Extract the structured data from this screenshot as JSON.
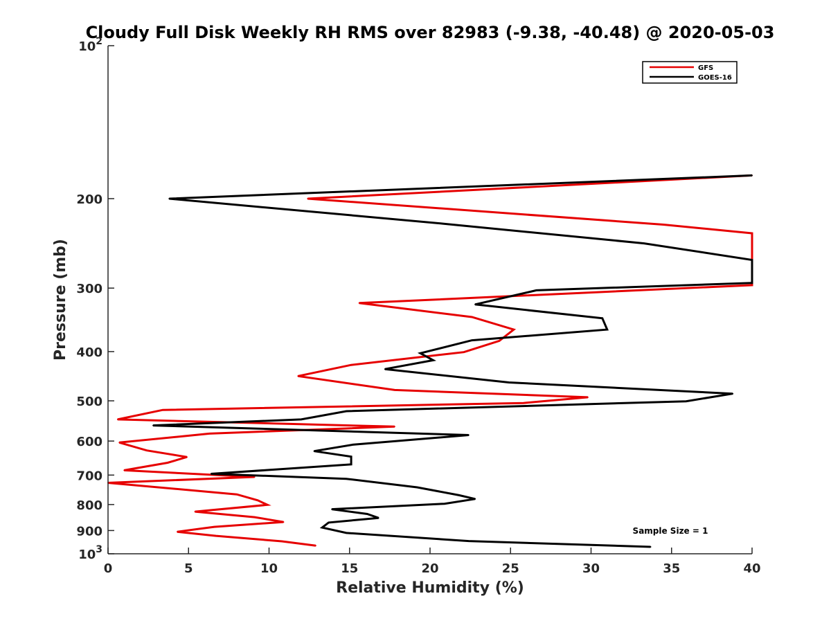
{
  "chart_data": {
    "type": "line",
    "title": "Cloudy Full Disk Weekly RH RMS over 82983 (-9.38, -40.48) @ 2020-05-03",
    "xlabel": "Relative Humidity (%)",
    "ylabel": "Pressure (mb)",
    "xlim": [
      0,
      40
    ],
    "ylim": [
      100,
      1000
    ],
    "y_scale": "log",
    "y_reversed": true,
    "grid": false,
    "legend_position": "top-right",
    "x_ticks": [
      {
        "value": 0,
        "label": "0"
      },
      {
        "value": 5,
        "label": "5"
      },
      {
        "value": 10,
        "label": "10"
      },
      {
        "value": 15,
        "label": "15"
      },
      {
        "value": 20,
        "label": "20"
      },
      {
        "value": 25,
        "label": "25"
      },
      {
        "value": 30,
        "label": "30"
      },
      {
        "value": 35,
        "label": "35"
      },
      {
        "value": 40,
        "label": "40"
      }
    ],
    "y_ticks": [
      {
        "value": 100,
        "base": "10",
        "exp": "2"
      },
      {
        "value": 200,
        "label": "200"
      },
      {
        "value": 300,
        "label": "300"
      },
      {
        "value": 400,
        "label": "400"
      },
      {
        "value": 500,
        "label": "500"
      },
      {
        "value": 600,
        "label": "600"
      },
      {
        "value": 700,
        "label": "700"
      },
      {
        "value": 800,
        "label": "800"
      },
      {
        "value": 900,
        "label": "900"
      },
      {
        "value": 1000,
        "base": "10",
        "exp": "3"
      }
    ],
    "series": [
      {
        "name": "GFS",
        "color": "#e60000",
        "points": [
          [
            40,
            180
          ],
          [
            12.4,
            200
          ],
          [
            34.5,
            225
          ],
          [
            40,
            234
          ],
          [
            40,
            296
          ],
          [
            15.6,
            321
          ],
          [
            22.6,
            342
          ],
          [
            25.2,
            362
          ],
          [
            24.3,
            381
          ],
          [
            22.1,
            401
          ],
          [
            15.1,
            425
          ],
          [
            11.8,
            447
          ],
          [
            17.8,
            476
          ],
          [
            29.8,
            492
          ],
          [
            25.8,
            505
          ],
          [
            3.4,
            521
          ],
          [
            0.6,
            544
          ],
          [
            17.8,
            562
          ],
          [
            6.3,
            580
          ],
          [
            0.7,
            604
          ],
          [
            2.4,
            626
          ],
          [
            4.9,
            645
          ],
          [
            3.7,
            662
          ],
          [
            1.0,
            685
          ],
          [
            9.1,
            706
          ],
          [
            0,
            725
          ],
          [
            8.0,
            764
          ],
          [
            9.3,
            785
          ],
          [
            9.9,
            801
          ],
          [
            5.4,
            826
          ],
          [
            9.1,
            847
          ],
          [
            10.9,
            866
          ],
          [
            6.6,
            885
          ],
          [
            4.3,
            905
          ],
          [
            6.7,
            922
          ],
          [
            10.8,
            945
          ],
          [
            12.9,
            964
          ]
        ]
      },
      {
        "name": "GOES-16",
        "color": "#000000",
        "points": [
          [
            40,
            180
          ],
          [
            3.8,
            200
          ],
          [
            20.8,
            224
          ],
          [
            33.3,
            245
          ],
          [
            40,
            264
          ],
          [
            40,
            293
          ],
          [
            26.6,
            303
          ],
          [
            22.8,
            323
          ],
          [
            30.7,
            344
          ],
          [
            31.0,
            362
          ],
          [
            22.6,
            380
          ],
          [
            19.4,
            403
          ],
          [
            20.2,
            416
          ],
          [
            17.2,
            433
          ],
          [
            24.9,
            460
          ],
          [
            38.8,
            484
          ],
          [
            35.9,
            501
          ],
          [
            14.8,
            524
          ],
          [
            12.0,
            544
          ],
          [
            2.8,
            559
          ],
          [
            22.4,
            584
          ],
          [
            15.2,
            610
          ],
          [
            12.8,
            628
          ],
          [
            15.1,
            644
          ],
          [
            15.1,
            667
          ],
          [
            6.4,
            696
          ],
          [
            14.8,
            712
          ],
          [
            19.2,
            740
          ],
          [
            21.8,
            767
          ],
          [
            22.8,
            780
          ],
          [
            20.9,
            797
          ],
          [
            13.9,
            817
          ],
          [
            16.1,
            835
          ],
          [
            16.8,
            850
          ],
          [
            13.7,
            868
          ],
          [
            13.3,
            888
          ],
          [
            14.8,
            910
          ],
          [
            22.4,
            944
          ],
          [
            33.7,
            969
          ]
        ]
      }
    ],
    "annotations": [
      "Sample Size = 1"
    ]
  }
}
